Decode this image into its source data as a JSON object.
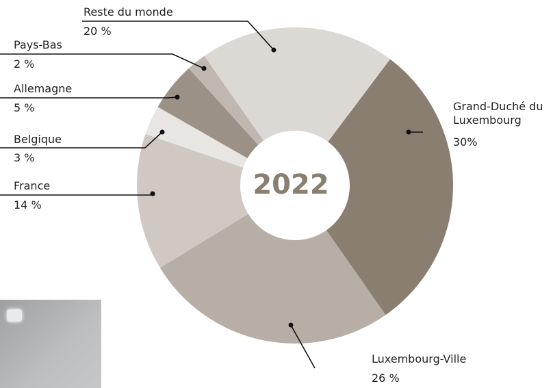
{
  "chart_data": {
    "type": "donut",
    "center_label": "2022",
    "categories": [
      "Grand-Duché du Luxembourg",
      "Luxembourg-Ville",
      "France",
      "Belgique",
      "Allemagne",
      "Pays-Bas",
      "Reste du monde"
    ],
    "values": [
      30,
      26,
      14,
      3,
      5,
      2,
      20
    ],
    "value_labels": [
      "30%",
      "26 %",
      "14 %",
      "3 %",
      "5 %",
      "2 %",
      "20 %"
    ],
    "colors": [
      "#8a7e70",
      "#b7aea6",
      "#cfc9c2",
      "#e8e5e2",
      "#9c9186",
      "#c0b8b0",
      "#dcd8d3"
    ]
  }
}
